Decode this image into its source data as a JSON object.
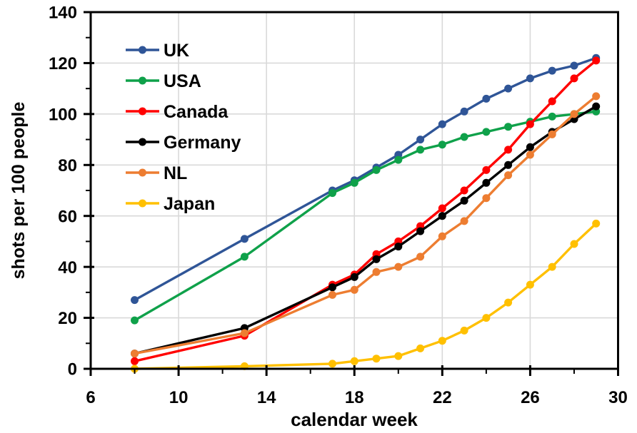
{
  "chart_data": {
    "type": "line",
    "title": "",
    "xlabel": "calendar week",
    "ylabel": "shots per 100 people",
    "xlim": [
      6,
      30
    ],
    "ylim": [
      0,
      140
    ],
    "grid": true,
    "legend_position": "inside-top-left",
    "x_ticks_major": [
      6,
      10,
      14,
      18,
      22,
      26,
      30
    ],
    "x_ticks_minor": [
      8,
      12,
      16,
      20,
      24,
      28
    ],
    "y_ticks_major": [
      0,
      20,
      40,
      60,
      80,
      100,
      120,
      140
    ],
    "y_ticks_minor": [
      10,
      30,
      50,
      70,
      90,
      110,
      130
    ],
    "x": [
      8,
      13,
      17,
      18,
      19,
      20,
      21,
      22,
      23,
      24,
      25,
      26,
      27,
      28,
      29
    ],
    "series": [
      {
        "name": "UK",
        "color": "#2F5597",
        "values": [
          27,
          51,
          70,
          74,
          79,
          84,
          90,
          96,
          101,
          106,
          110,
          114,
          117,
          119,
          122
        ]
      },
      {
        "name": "USA",
        "color": "#0FA14A",
        "values": [
          19,
          44,
          69,
          73,
          78,
          82,
          86,
          88,
          91,
          93,
          95,
          97,
          99,
          100,
          101
        ]
      },
      {
        "name": "Canada",
        "color": "#FF0000",
        "values": [
          3,
          13,
          33,
          37,
          45,
          50,
          56,
          63,
          70,
          78,
          86,
          96,
          105,
          114,
          121
        ]
      },
      {
        "name": "Germany",
        "color": "#000000",
        "values": [
          6,
          16,
          32,
          36,
          43,
          48,
          54,
          60,
          66,
          73,
          80,
          87,
          93,
          98,
          103
        ]
      },
      {
        "name": "NL",
        "color": "#ED7D31",
        "values": [
          6,
          14,
          29,
          31,
          38,
          40,
          44,
          52,
          58,
          67,
          76,
          84,
          92,
          100,
          107
        ]
      },
      {
        "name": "Japan",
        "color": "#FFC000",
        "values": [
          0,
          1,
          2,
          3,
          4,
          5,
          8,
          11,
          15,
          20,
          26,
          33,
          40,
          49,
          57
        ]
      }
    ],
    "colors": {
      "gridline": "#D9D9D9",
      "axis": "#000000",
      "background": "#FFFFFF"
    }
  }
}
